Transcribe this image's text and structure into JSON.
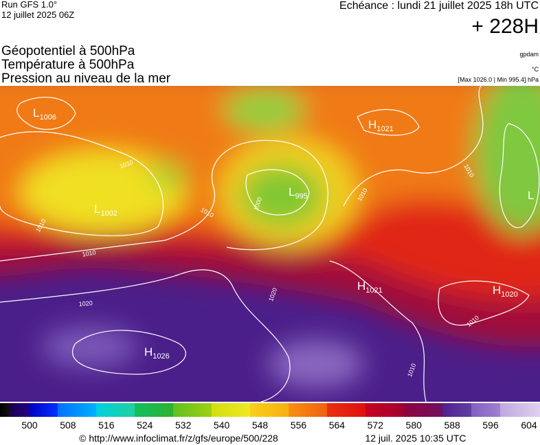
{
  "header": {
    "run": "Run GFS 1.0°",
    "run_date": "12 juillet 2025 06Z",
    "valid": "Echéance : lundi 21 juillet 2025 18h UTC",
    "lead": "+ 228H"
  },
  "legend": {
    "fields": [
      "Géopotentiel à 500hPa",
      "Température à 500hPa",
      "Pression au niveau de la mer"
    ],
    "units": [
      "gpdam",
      "°C"
    ],
    "range": "[Max 1026.0 | Min 995.4] hPa"
  },
  "map": {
    "centers": [
      {
        "letter": "L",
        "value": "1006"
      },
      {
        "letter": "H",
        "value": "1021"
      },
      {
        "letter": "L",
        "value": "995"
      },
      {
        "letter": "L",
        "value": "1002"
      },
      {
        "letter": "H",
        "value": "1021"
      },
      {
        "letter": "H",
        "value": "1020"
      },
      {
        "letter": "H",
        "value": "1026"
      },
      {
        "letter": "L"
      }
    ],
    "isobar_labels": [
      "1010",
      "1010",
      "1010",
      "1010",
      "1020",
      "1020",
      "1000",
      "1010",
      "1010",
      "1010",
      "1010"
    ]
  },
  "colorbar": {
    "labels": [
      500,
      508,
      516,
      524,
      532,
      540,
      548,
      556,
      564,
      572,
      580,
      588,
      596,
      604
    ]
  },
  "footer": {
    "source": "© http://www.infoclimat.fr/z/gfs/europe/500/228",
    "timestamp": "12 juil. 2025 10:35 UTC"
  }
}
